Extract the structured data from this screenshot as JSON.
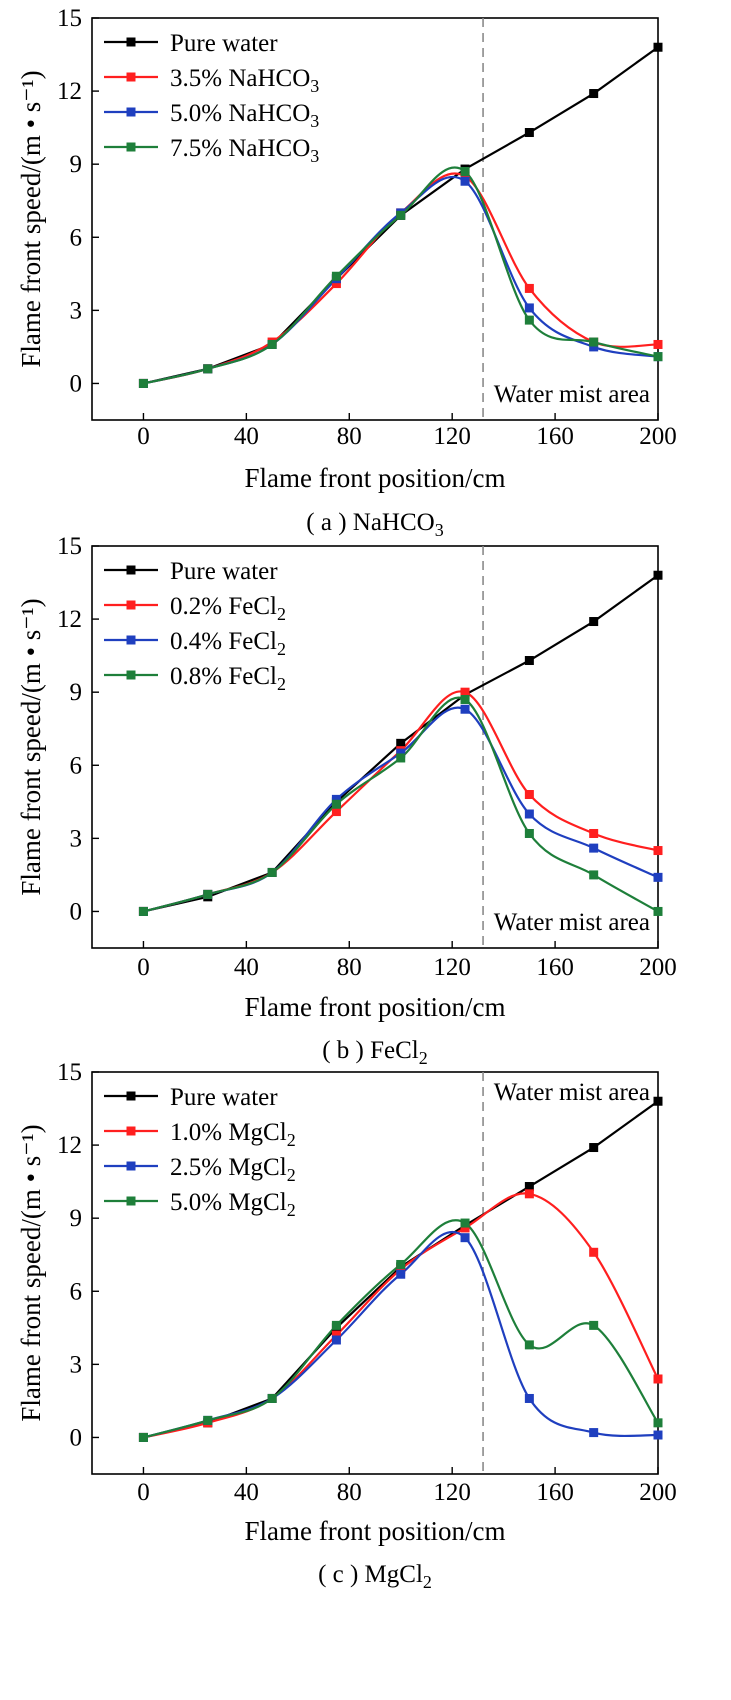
{
  "chart_data": [
    {
      "type": "line",
      "caption": "( a ) NaHCO3",
      "xlabel": "Flame front position/cm",
      "ylabel": "Flame front speed/(m • s⁻¹)",
      "xlim": [
        -20,
        200
      ],
      "ylim": [
        -1.5,
        15
      ],
      "xticks": [
        0,
        40,
        80,
        120,
        160,
        200
      ],
      "yticks": [
        0,
        3,
        6,
        9,
        12,
        15
      ],
      "annotation": "Water mist area",
      "annotation_pos": "bottom-right",
      "mist_boundary_x": 132,
      "legend_position": "top-left",
      "series": [
        {
          "name": "Pure water",
          "color": "#000000",
          "x": [
            0,
            25,
            50,
            75,
            100,
            125,
            150,
            175,
            200
          ],
          "y": [
            0,
            0.6,
            1.6,
            4.3,
            6.9,
            8.8,
            10.3,
            11.9,
            13.8
          ]
        },
        {
          "name": "3.5% NaHCO3",
          "color": "#ff1f1f",
          "x": [
            0,
            25,
            50,
            75,
            100,
            125,
            150,
            175,
            200
          ],
          "y": [
            0,
            0.6,
            1.7,
            4.1,
            7.0,
            8.5,
            3.9,
            1.7,
            1.6
          ]
        },
        {
          "name": "5.0% NaHCO3",
          "color": "#1f3fbf",
          "x": [
            0,
            25,
            50,
            75,
            100,
            125,
            150,
            175,
            200
          ],
          "y": [
            0,
            0.6,
            1.6,
            4.3,
            7.0,
            8.3,
            3.1,
            1.5,
            1.1
          ]
        },
        {
          "name": "7.5% NaHCO3",
          "color": "#1e7f3a",
          "x": [
            0,
            25,
            50,
            75,
            100,
            125,
            150,
            175,
            200
          ],
          "y": [
            0,
            0.6,
            1.6,
            4.4,
            6.9,
            8.7,
            2.6,
            1.7,
            1.1
          ]
        }
      ]
    },
    {
      "type": "line",
      "caption": "( b ) FeCl2",
      "xlabel": "Flame front position/cm",
      "ylabel": "Flame front speed/(m • s⁻¹)",
      "xlim": [
        -20,
        200
      ],
      "ylim": [
        -1.5,
        15
      ],
      "xticks": [
        0,
        40,
        80,
        120,
        160,
        200
      ],
      "yticks": [
        0,
        3,
        6,
        9,
        12,
        15
      ],
      "annotation": "Water mist area",
      "annotation_pos": "bottom-right",
      "mist_boundary_x": 132,
      "legend_position": "top-left",
      "series": [
        {
          "name": "Pure water",
          "color": "#000000",
          "x": [
            0,
            25,
            50,
            75,
            100,
            125,
            150,
            175,
            200
          ],
          "y": [
            0,
            0.6,
            1.6,
            4.5,
            6.9,
            8.9,
            10.3,
            11.9,
            13.8
          ]
        },
        {
          "name": "0.2% FeCl2",
          "color": "#ff1f1f",
          "x": [
            0,
            25,
            50,
            75,
            100,
            125,
            150,
            175,
            200
          ],
          "y": [
            0,
            0.7,
            1.6,
            4.1,
            6.6,
            9.0,
            4.8,
            3.2,
            2.5
          ]
        },
        {
          "name": "0.4% FeCl2",
          "color": "#1f3fbf",
          "x": [
            0,
            25,
            50,
            75,
            100,
            125,
            150,
            175,
            200
          ],
          "y": [
            0,
            0.7,
            1.6,
            4.6,
            6.5,
            8.3,
            4.0,
            2.6,
            1.4
          ]
        },
        {
          "name": "0.8% FeCl2",
          "color": "#1e7f3a",
          "x": [
            0,
            25,
            50,
            75,
            100,
            125,
            150,
            175,
            200
          ],
          "y": [
            0,
            0.7,
            1.6,
            4.4,
            6.3,
            8.7,
            3.2,
            1.5,
            0.0
          ]
        }
      ]
    },
    {
      "type": "line",
      "caption": "( c ) MgCl2",
      "xlabel": "Flame front position/cm",
      "ylabel": "Flame front speed/(m • s⁻¹)",
      "xlim": [
        -20,
        200
      ],
      "ylim": [
        -1.5,
        15
      ],
      "xticks": [
        0,
        40,
        80,
        120,
        160,
        200
      ],
      "yticks": [
        0,
        3,
        6,
        9,
        12,
        15
      ],
      "annotation": "Water mist area",
      "annotation_pos": "top-right",
      "mist_boundary_x": 132,
      "legend_position": "top-left",
      "series": [
        {
          "name": "Pure water",
          "color": "#000000",
          "x": [
            0,
            25,
            50,
            75,
            100,
            125,
            150,
            175,
            200
          ],
          "y": [
            0,
            0.6,
            1.6,
            4.5,
            7.0,
            8.7,
            10.3,
            11.9,
            13.8
          ]
        },
        {
          "name": "1.0% MgCl2",
          "color": "#ff1f1f",
          "x": [
            0,
            25,
            50,
            75,
            100,
            125,
            150,
            175,
            200
          ],
          "y": [
            0,
            0.6,
            1.6,
            4.2,
            6.9,
            8.6,
            10.0,
            7.6,
            2.4
          ]
        },
        {
          "name": "2.5% MgCl2",
          "color": "#1f3fbf",
          "x": [
            0,
            25,
            50,
            75,
            100,
            125,
            150,
            175,
            200
          ],
          "y": [
            0,
            0.7,
            1.6,
            4.0,
            6.7,
            8.2,
            1.6,
            0.2,
            0.1
          ]
        },
        {
          "name": "5.0% MgCl2",
          "color": "#1e7f3a",
          "x": [
            0,
            25,
            50,
            75,
            100,
            125,
            150,
            175,
            200
          ],
          "y": [
            0,
            0.7,
            1.6,
            4.6,
            7.1,
            8.8,
            3.8,
            4.6,
            0.6
          ]
        }
      ]
    }
  ]
}
